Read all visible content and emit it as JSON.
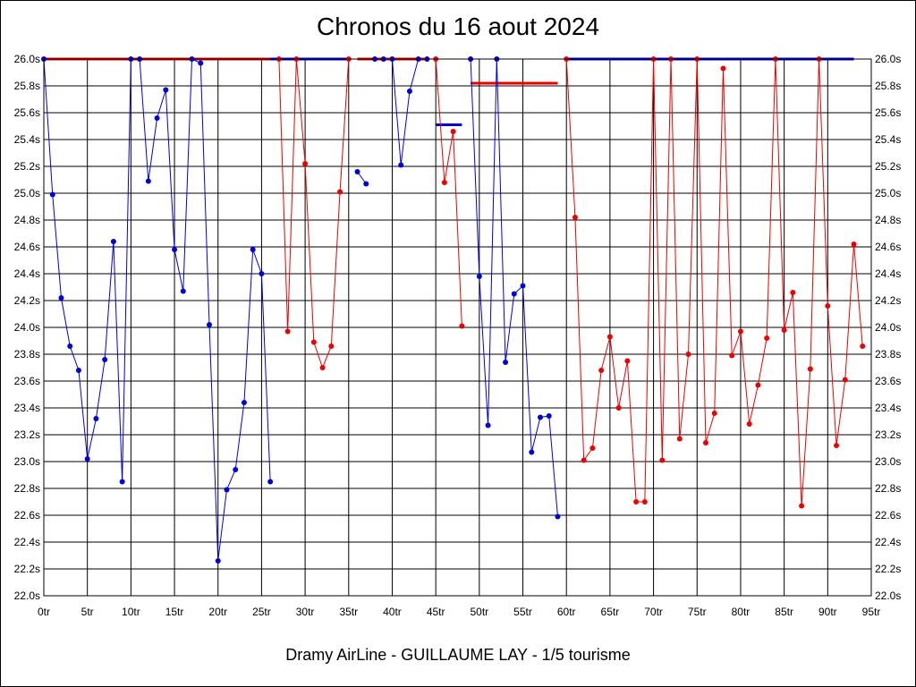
{
  "chart_data": {
    "type": "line",
    "title": "Chronos du 16 aout 2024",
    "subtitle": "Dramy AirLine - GUILLAUME LAY - 1/5 tourisme",
    "xlim": [
      0,
      95
    ],
    "ylim": [
      22.0,
      26.0
    ],
    "x_ticks": [
      {
        "value": 0,
        "label": "0tr"
      },
      {
        "value": 5,
        "label": "5tr"
      },
      {
        "value": 10,
        "label": "10tr"
      },
      {
        "value": 15,
        "label": "15tr"
      },
      {
        "value": 20,
        "label": "20tr"
      },
      {
        "value": 25,
        "label": "25tr"
      },
      {
        "value": 30,
        "label": "30tr"
      },
      {
        "value": 35,
        "label": "35tr"
      },
      {
        "value": 40,
        "label": "40tr"
      },
      {
        "value": 45,
        "label": "45tr"
      },
      {
        "value": 50,
        "label": "50tr"
      },
      {
        "value": 55,
        "label": "55tr"
      },
      {
        "value": 60,
        "label": "60tr"
      },
      {
        "value": 65,
        "label": "65tr"
      },
      {
        "value": 70,
        "label": "70tr"
      },
      {
        "value": 75,
        "label": "75tr"
      },
      {
        "value": 80,
        "label": "80tr"
      },
      {
        "value": 85,
        "label": "85tr"
      },
      {
        "value": 90,
        "label": "90tr"
      },
      {
        "value": 95,
        "label": "95tr"
      }
    ],
    "y_ticks": [
      {
        "value": 22.0,
        "label": "22.0s"
      },
      {
        "value": 22.2,
        "label": "22.2s"
      },
      {
        "value": 22.4,
        "label": "22.4s"
      },
      {
        "value": 22.6,
        "label": "22.6s"
      },
      {
        "value": 22.8,
        "label": "22.8s"
      },
      {
        "value": 23.0,
        "label": "23.0s"
      },
      {
        "value": 23.2,
        "label": "23.2s"
      },
      {
        "value": 23.4,
        "label": "23.4s"
      },
      {
        "value": 23.6,
        "label": "23.6s"
      },
      {
        "value": 23.8,
        "label": "23.8s"
      },
      {
        "value": 24.0,
        "label": "24.0s"
      },
      {
        "value": 24.2,
        "label": "24.2s"
      },
      {
        "value": 24.4,
        "label": "24.4s"
      },
      {
        "value": 24.6,
        "label": "24.6s"
      },
      {
        "value": 24.8,
        "label": "24.8s"
      },
      {
        "value": 25.0,
        "label": "25.0s"
      },
      {
        "value": 25.2,
        "label": "25.2s"
      },
      {
        "value": 25.4,
        "label": "25.4s"
      },
      {
        "value": 25.6,
        "label": "25.6s"
      },
      {
        "value": 25.8,
        "label": "25.8s"
      },
      {
        "value": 26.0,
        "label": "26.0s"
      }
    ],
    "grid": true,
    "colors": {
      "blue": "#0000dd",
      "red": "#ee0000"
    },
    "series": [
      {
        "color": "blue",
        "points": [
          [
            0,
            26.0
          ],
          [
            1,
            24.99
          ],
          [
            2,
            24.22
          ],
          [
            3,
            23.86
          ],
          [
            4,
            23.68
          ],
          [
            5,
            23.02
          ],
          [
            6,
            23.32
          ],
          [
            7,
            23.76
          ],
          [
            8,
            24.64
          ],
          [
            9,
            22.85
          ],
          [
            10,
            26.0
          ],
          [
            11,
            26.0
          ],
          [
            12,
            25.09
          ],
          [
            13,
            25.56
          ],
          [
            14,
            25.77
          ],
          [
            15,
            24.58
          ],
          [
            16,
            24.27
          ],
          [
            17,
            26.0
          ],
          [
            18,
            25.97
          ],
          [
            19,
            24.02
          ],
          [
            20,
            22.26
          ],
          [
            21,
            22.79
          ],
          [
            22,
            22.94
          ],
          [
            23,
            23.44
          ],
          [
            24,
            24.58
          ],
          [
            25,
            24.4
          ],
          [
            26,
            22.85
          ]
        ]
      },
      {
        "color": "red",
        "points": [
          [
            27,
            26.0
          ],
          [
            28,
            23.97
          ],
          [
            29,
            26.0
          ],
          [
            30,
            25.22
          ],
          [
            31,
            23.89
          ],
          [
            32,
            23.7
          ],
          [
            33,
            23.86
          ],
          [
            34,
            25.01
          ],
          [
            35,
            26.0
          ]
        ]
      },
      {
        "color": "blue",
        "points": [
          [
            36,
            25.16
          ],
          [
            37,
            25.07
          ]
        ]
      },
      {
        "color": "blue",
        "points": [
          [
            38,
            26.0
          ],
          [
            39,
            26.0
          ],
          [
            40,
            26.0
          ],
          [
            41,
            25.21
          ],
          [
            42,
            25.76
          ],
          [
            43,
            26.0
          ],
          [
            44,
            26.0
          ]
        ]
      },
      {
        "color": "red",
        "points": [
          [
            45,
            26.0
          ],
          [
            46,
            25.08
          ],
          [
            47,
            25.46
          ],
          [
            48,
            24.01
          ]
        ]
      },
      {
        "color": "blue",
        "points": [
          [
            49,
            26.0
          ],
          [
            50,
            24.38
          ],
          [
            51,
            23.27
          ],
          [
            52,
            26.0
          ],
          [
            53,
            23.74
          ],
          [
            54,
            24.25
          ],
          [
            55,
            24.31
          ],
          [
            56,
            23.07
          ],
          [
            57,
            23.33
          ],
          [
            58,
            23.34
          ],
          [
            59,
            22.59
          ]
        ]
      },
      {
        "color": "red",
        "points": [
          [
            60,
            26.0
          ],
          [
            61,
            24.82
          ],
          [
            62,
            23.01
          ],
          [
            63,
            23.1
          ],
          [
            64,
            23.68
          ],
          [
            65,
            23.93
          ],
          [
            66,
            23.4
          ],
          [
            67,
            23.75
          ],
          [
            68,
            22.7
          ],
          [
            69,
            22.7
          ],
          [
            70,
            26.0
          ],
          [
            71,
            23.01
          ],
          [
            72,
            26.0
          ],
          [
            73,
            23.17
          ],
          [
            74,
            23.8
          ],
          [
            75,
            26.0
          ],
          [
            76,
            23.14
          ],
          [
            77,
            23.36
          ],
          [
            78,
            25.93
          ],
          [
            79,
            23.79
          ],
          [
            80,
            23.97
          ],
          [
            81,
            23.28
          ],
          [
            82,
            23.57
          ],
          [
            83,
            23.92
          ],
          [
            84,
            26.0
          ],
          [
            85,
            23.98
          ],
          [
            86,
            24.26
          ],
          [
            87,
            22.67
          ],
          [
            88,
            23.69
          ],
          [
            89,
            26.0
          ],
          [
            90,
            24.16
          ],
          [
            91,
            23.12
          ],
          [
            92,
            23.61
          ],
          [
            93,
            24.62
          ],
          [
            94,
            23.86
          ]
        ]
      }
    ],
    "reference_lines": [
      {
        "color": "red",
        "x_start": 0,
        "x_end": 26,
        "y": 26.0
      },
      {
        "color": "blue",
        "x_start": 26,
        "x_end": 35,
        "y": 26.0
      },
      {
        "color": "red",
        "x_start": 36,
        "x_end": 44,
        "y": 26.0
      },
      {
        "color": "blue",
        "x_start": 60,
        "x_end": 93,
        "y": 26.0
      },
      {
        "color": "blue",
        "x_start": 45,
        "x_end": 48,
        "y": 25.51
      },
      {
        "color": "red",
        "x_start": 49,
        "x_end": 59,
        "y": 25.82
      }
    ]
  }
}
